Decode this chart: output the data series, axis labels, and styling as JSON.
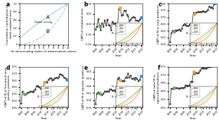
{
  "panel_a": {
    "label": "a",
    "xlabel": "(In descending order of urbanisation rates)",
    "ylabel": "Cumulative contribution to\ntotal cropland area",
    "x": [
      1,
      2,
      3,
      4,
      5,
      6,
      7,
      8,
      9,
      10,
      11
    ],
    "curve_A_label": "A",
    "curve_B_label": "B",
    "color": "#a8c8e8",
    "ylim": [
      0,
      1
    ],
    "xlim": [
      1,
      11
    ]
  },
  "panel_b": {
    "label": "b",
    "ylabel": "CAPI of cropland area",
    "xlabel": "Year",
    "ylim": [
      -0.04,
      0.04
    ],
    "highlight_color": "#f5a623",
    "highlight_color2": "#4a90d9",
    "line_color": "#333333",
    "inset_lines": [
      "1980",
      "2000",
      "2018"
    ],
    "inset_colors": [
      "#e87040",
      "#f5c842",
      "#6ab04c"
    ]
  },
  "panel_c": {
    "label": "c",
    "ylabel": "CAPI of N in crop products",
    "xlabel": "Year",
    "ylim": [
      0.5,
      0.8
    ],
    "highlight_color": "#f5a623",
    "highlight_color2": "#4a90d9"
  },
  "panel_d": {
    "label": "d",
    "ylabel": "CAPI of N in livestock and\npoultry products",
    "xlabel": "Year",
    "ylim": [
      0.45,
      0.75
    ],
    "highlight_color": "#f5a623",
    "highlight_color2": "#4a90d9"
  },
  "panel_e": {
    "label": "e",
    "ylabel": "CAPI of N in aquatic products",
    "xlabel": "Year",
    "ylim": [
      0.3,
      0.64
    ],
    "highlight_color": "#f5a623",
    "highlight_color2": "#4a90d9"
  },
  "panel_f": {
    "label": "f",
    "ylabel": "CAPI of total N in\nagricultural products",
    "xlabel": "Year",
    "ylim": [
      0.5,
      0.75
    ],
    "highlight_color": "#f5a623",
    "highlight_color2": "#4a90d9"
  },
  "years": [
    1985,
    1986,
    1987,
    1988,
    1989,
    1990,
    1991,
    1992,
    1993,
    1994,
    1995,
    1996,
    1997,
    1998,
    1999,
    2000,
    2001,
    2002,
    2003,
    2004,
    2005,
    2006,
    2007,
    2008,
    2009,
    2010,
    2011,
    2012,
    2013,
    2014,
    2015,
    2016,
    2017,
    2018,
    2019,
    2020
  ],
  "background_color": "#ffffff",
  "text_color": "#000000",
  "inset_line_colors": [
    "#e87040",
    "#f5c842",
    "#5ab04c"
  ],
  "inset_years": [
    "1980",
    "2000",
    "2018"
  ]
}
